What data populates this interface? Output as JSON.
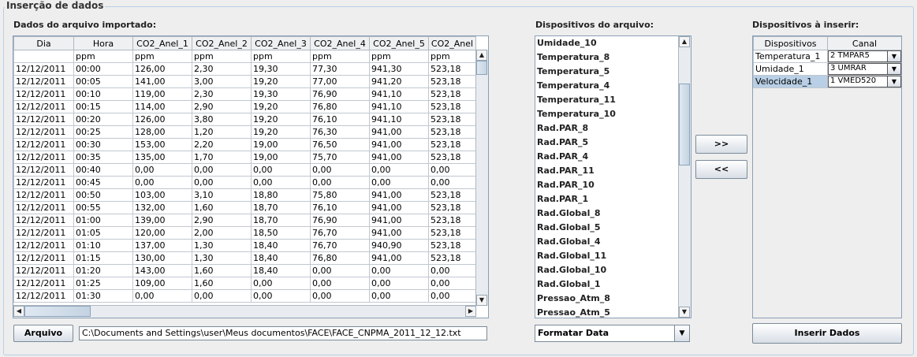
{
  "panel_title": "Inserção de dados",
  "imported": {
    "label": "Dados do arquivo importado:",
    "columns": [
      "Dia",
      "Hora",
      "CO2_Anel_1",
      "CO2_Anel_2",
      "CO2_Anel_3",
      "CO2_Anel_4",
      "CO2_Anel_5",
      "CO2_Anel"
    ],
    "rows": [
      [
        "",
        "ppm",
        "ppm",
        "ppm",
        "ppm",
        "ppm",
        "ppm",
        "ppm"
      ],
      [
        "12/12/2011",
        "00:00",
        "126,00",
        "2,30",
        "19,30",
        "77,30",
        "941,30",
        "523,18"
      ],
      [
        "12/12/2011",
        "00:05",
        "141,00",
        "3,00",
        "19,20",
        "77,00",
        "941,20",
        "523,18"
      ],
      [
        "12/12/2011",
        "00:10",
        "119,00",
        "2,30",
        "19,30",
        "76,90",
        "941,10",
        "523,18"
      ],
      [
        "12/12/2011",
        "00:15",
        "114,00",
        "2,90",
        "19,20",
        "76,80",
        "941,10",
        "523,18"
      ],
      [
        "12/12/2011",
        "00:20",
        "126,00",
        "3,80",
        "19,20",
        "76,10",
        "941,10",
        "523,18"
      ],
      [
        "12/12/2011",
        "00:25",
        "128,00",
        "1,20",
        "19,20",
        "76,30",
        "941,00",
        "523,18"
      ],
      [
        "12/12/2011",
        "00:30",
        "153,00",
        "2,20",
        "19,00",
        "76,50",
        "941,00",
        "523,18"
      ],
      [
        "12/12/2011",
        "00:35",
        "135,00",
        "1,70",
        "19,00",
        "75,70",
        "941,00",
        "523,18"
      ],
      [
        "12/12/2011",
        "00:40",
        "0,00",
        "0,00",
        "0,00",
        "0,00",
        "0,00",
        "0,00"
      ],
      [
        "12/12/2011",
        "00:45",
        "0,00",
        "0,00",
        "0,00",
        "0,00",
        "0,00",
        "0,00"
      ],
      [
        "12/12/2011",
        "00:50",
        "103,00",
        "3,10",
        "18,80",
        "75,80",
        "941,00",
        "523,18"
      ],
      [
        "12/12/2011",
        "00:55",
        "132,00",
        "1,60",
        "18,70",
        "76,10",
        "941,00",
        "523,18"
      ],
      [
        "12/12/2011",
        "01:00",
        "139,00",
        "2,90",
        "18,70",
        "76,90",
        "941,00",
        "523,18"
      ],
      [
        "12/12/2011",
        "01:05",
        "120,00",
        "2,00",
        "18,50",
        "76,70",
        "941,00",
        "523,18"
      ],
      [
        "12/12/2011",
        "01:10",
        "137,00",
        "1,30",
        "18,40",
        "76,70",
        "940,90",
        "523,18"
      ],
      [
        "12/12/2011",
        "01:15",
        "130,00",
        "1,30",
        "18,40",
        "76,80",
        "941,00",
        "523,18"
      ],
      [
        "12/12/2011",
        "01:20",
        "143,00",
        "1,60",
        "18,40",
        "0,00",
        "0,00",
        "0,00"
      ],
      [
        "12/12/2011",
        "01:25",
        "109,00",
        "1,60",
        "0,00",
        "0,00",
        "0,00",
        "0,00"
      ],
      [
        "12/12/2011",
        "01:30",
        "0,00",
        "0,00",
        "0,00",
        "0,00",
        "0,00",
        "0,00"
      ]
    ],
    "file_button": "Arquivo",
    "file_path": "C:\\Documents and Settings\\user\\Meus documentos\\FACE\\FACE_CNPMA_2011_12_12.txt"
  },
  "devices_file": {
    "label": "Dispositivos do arquivo:",
    "items": [
      "Umidade_10",
      "Temperatura_8",
      "Temperatura_5",
      "Temperatura_4",
      "Temperatura_11",
      "Temperatura_10",
      "Rad.PAR_8",
      "Rad.PAR_5",
      "Rad.PAR_4",
      "Rad.PAR_11",
      "Rad.PAR_10",
      "Rad.PAR_1",
      "Rad.Global_8",
      "Rad.Global_5",
      "Rad.Global_4",
      "Rad.Global_11",
      "Rad.Global_10",
      "Rad.Global_1",
      "Pressao_Atm_8",
      "Pressao_Atm_5"
    ],
    "format_combo": "Formatar Data"
  },
  "move": {
    "add_label": ">>",
    "remove_label": "<<"
  },
  "devices_insert": {
    "label": "Dispositivos à inserir:",
    "columns": [
      "Dispositivos",
      "Canal"
    ],
    "rows": [
      {
        "device": "Temperatura_1",
        "channel": "2 TMPAR5"
      },
      {
        "device": "Umidade_1",
        "channel": "3 UMRAR"
      },
      {
        "device": "Velocidade_1",
        "channel": "1 VMED520"
      }
    ],
    "insert_button": "Inserir Dados"
  },
  "colors": {
    "selected_row": "#b8cfe5",
    "border": "#8a9fb5"
  }
}
